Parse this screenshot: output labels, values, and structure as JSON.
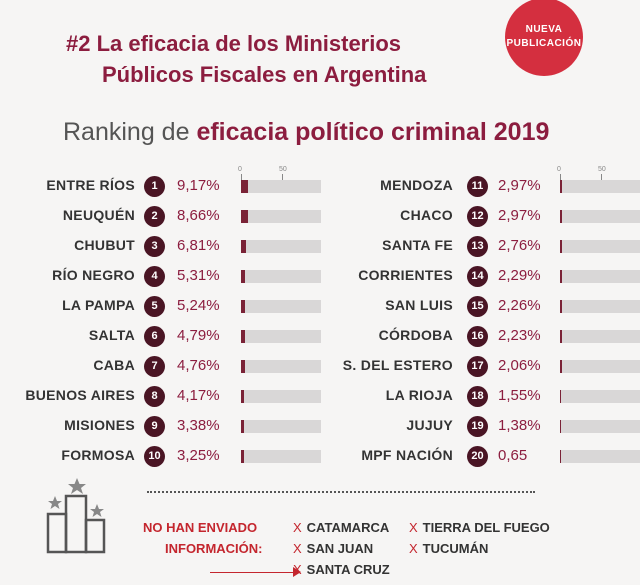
{
  "badge": {
    "line1": "NUEVA",
    "line2": "PUBLICACIÓN"
  },
  "title": {
    "line1": "#2 La eficacia de los Ministerios",
    "line2": "Públicos Fiscales en Argentina"
  },
  "subtitle": {
    "prefix": "Ranking de ",
    "emphasis": "eficacia político criminal 2019"
  },
  "chart_data": {
    "type": "bar",
    "title": "Ranking de eficacia político criminal 2019",
    "axis_ticks": [
      "0",
      "50"
    ],
    "xlim": [
      0,
      100
    ],
    "value_unit": "%",
    "rows": [
      {
        "rank": "1",
        "name": "ENTRE RÍOS",
        "label": "9,17%",
        "value": 9.17
      },
      {
        "rank": "2",
        "name": "NEUQUÉN",
        "label": "8,66%",
        "value": 8.66
      },
      {
        "rank": "3",
        "name": "CHUBUT",
        "label": "6,81%",
        "value": 6.81
      },
      {
        "rank": "4",
        "name": "RÍO NEGRO",
        "label": "5,31%",
        "value": 5.31
      },
      {
        "rank": "5",
        "name": "LA PAMPA",
        "label": "5,24%",
        "value": 5.24
      },
      {
        "rank": "6",
        "name": "SALTA",
        "label": "4,79%",
        "value": 4.79
      },
      {
        "rank": "7",
        "name": "CABA",
        "label": "4,76%",
        "value": 4.76
      },
      {
        "rank": "8",
        "name": "BUENOS AIRES",
        "label": "4,17%",
        "value": 4.17
      },
      {
        "rank": "9",
        "name": "MISIONES",
        "label": "3,38%",
        "value": 3.38
      },
      {
        "rank": "10",
        "name": "FORMOSA",
        "label": "3,25%",
        "value": 3.25
      },
      {
        "rank": "11",
        "name": "MENDOZA",
        "label": "2,97%",
        "value": 2.97
      },
      {
        "rank": "12",
        "name": "CHACO",
        "label": "2,97%",
        "value": 2.97
      },
      {
        "rank": "13",
        "name": "SANTA FE",
        "label": "2,76%",
        "value": 2.76
      },
      {
        "rank": "14",
        "name": "CORRIENTES",
        "label": "2,29%",
        "value": 2.29
      },
      {
        "rank": "15",
        "name": "SAN LUIS",
        "label": "2,26%",
        "value": 2.26
      },
      {
        "rank": "16",
        "name": "CÓRDOBA",
        "label": "2,23%",
        "value": 2.23
      },
      {
        "rank": "17",
        "name": "S. DEL ESTERO",
        "label": "2,06%",
        "value": 2.06
      },
      {
        "rank": "18",
        "name": "LA RIOJA",
        "label": "1,55%",
        "value": 1.55
      },
      {
        "rank": "19",
        "name": "JUJUY",
        "label": "1,38%",
        "value": 1.38
      },
      {
        "rank": "20",
        "name": "MPF NACIÓN",
        "label": "0,65",
        "value": 0.65
      }
    ]
  },
  "note": {
    "line1": "NO HAN ENVIADO",
    "line2": "INFORMACIÓN:",
    "marker": "X",
    "provinces": [
      "CATAMARCA",
      "TIERRA DEL FUEGO",
      "SAN JUAN",
      "TUCUMÁN",
      "SANTA CRUZ"
    ]
  },
  "colors": {
    "accent": "#8c1d3f",
    "rank_badge": "#4a1524",
    "bar_fill": "#7a2236",
    "bar_bg": "#d9d7d7",
    "note_red": "#c4262e",
    "badge_red": "#d42f3f"
  }
}
